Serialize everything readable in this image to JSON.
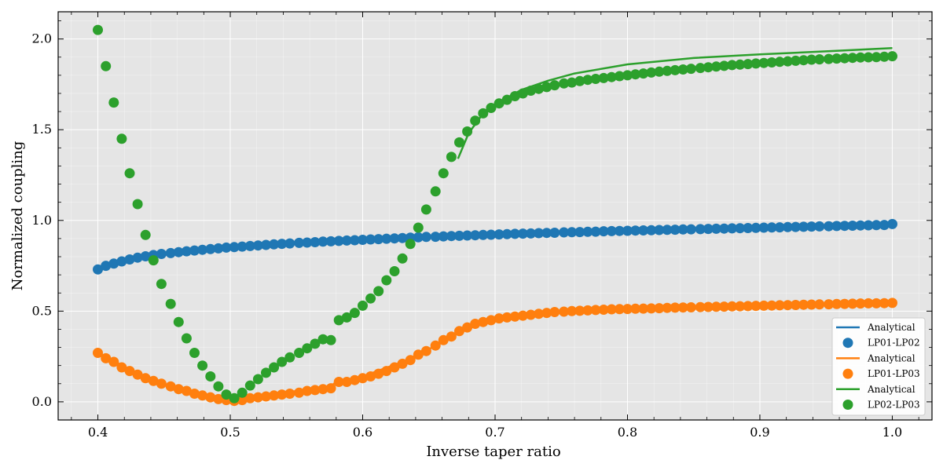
{
  "chart_data": {
    "type": "scatter",
    "xlabel": "Inverse taper ratio",
    "ylabel": "Normalized coupling",
    "xlim": [
      0.37,
      1.03
    ],
    "ylim": [
      -0.1,
      2.15
    ],
    "xticks": [
      "0.4",
      "0.5",
      "0.6",
      "0.7",
      "0.8",
      "0.9",
      "1.0"
    ],
    "xtick_values": [
      0.4,
      0.5,
      0.6,
      0.7,
      0.8,
      0.9,
      1.0
    ],
    "yticks": [
      "0.0",
      "0.5",
      "1.0",
      "1.5",
      "2.0"
    ],
    "ytick_values": [
      0.0,
      0.5,
      1.0,
      1.5,
      2.0
    ],
    "grid": true,
    "legend_position": "lower-right",
    "legend": [
      "Analytical",
      "LP01-LP02",
      "Analytical",
      "LP01-LP03",
      "Analytical",
      "LP02-LP03"
    ],
    "colors": {
      "blue": "#1f77b4",
      "orange": "#ff7f0e",
      "green": "#2ca02c",
      "background": "#e5e5e5"
    },
    "lines": [
      {
        "color": "blue",
        "x": [
          0.4,
          0.42,
          0.45,
          0.5,
          0.55,
          0.6,
          0.65,
          0.7,
          0.75,
          0.8,
          0.85,
          0.9,
          0.95,
          1.0
        ],
        "y": [
          0.73,
          0.78,
          0.81,
          0.85,
          0.875,
          0.895,
          0.91,
          0.925,
          0.935,
          0.945,
          0.955,
          0.962,
          0.97,
          0.98
        ]
      },
      {
        "color": "orange",
        "x": [
          0.4,
          0.44,
          0.47,
          0.5,
          0.51,
          0.55,
          0.575,
          0.58,
          0.6,
          0.63,
          0.65,
          0.67,
          0.68,
          0.7,
          0.75,
          0.8,
          0.85,
          0.9,
          0.95,
          1.0
        ],
        "y": [
          0.27,
          0.12,
          0.04,
          0.0,
          0.01,
          0.06,
          0.08,
          0.11,
          0.14,
          0.22,
          0.29,
          0.37,
          0.41,
          0.46,
          0.5,
          0.515,
          0.525,
          0.532,
          0.538,
          0.545
        ]
      },
      {
        "color": "green",
        "x": [
          0.672,
          0.68,
          0.69,
          0.7,
          0.72,
          0.74,
          0.76,
          0.8,
          0.85,
          0.9,
          0.95,
          1.0
        ],
        "y": [
          1.34,
          1.48,
          1.58,
          1.64,
          1.72,
          1.77,
          1.81,
          1.86,
          1.895,
          1.915,
          1.932,
          1.95
        ]
      }
    ],
    "scatter": [
      {
        "color": "blue",
        "x": [
          0.4,
          0.406,
          0.412,
          0.418,
          0.424,
          0.43,
          0.436,
          0.442,
          0.448,
          0.455,
          0.461,
          0.467,
          0.473,
          0.479,
          0.485,
          0.491,
          0.497,
          0.503,
          0.509,
          0.515,
          0.521,
          0.527,
          0.533,
          0.539,
          0.545,
          0.552,
          0.558,
          0.564,
          0.57,
          0.576,
          0.582,
          0.588,
          0.594,
          0.6,
          0.606,
          0.612,
          0.618,
          0.624,
          0.63,
          0.636,
          0.642,
          0.648,
          0.655,
          0.661,
          0.667,
          0.673,
          0.679,
          0.685,
          0.691,
          0.697,
          0.703,
          0.709,
          0.715,
          0.721,
          0.727,
          0.733,
          0.739,
          0.745,
          0.752,
          0.758,
          0.764,
          0.77,
          0.776,
          0.782,
          0.788,
          0.794,
          0.8,
          0.806,
          0.812,
          0.818,
          0.824,
          0.83,
          0.836,
          0.842,
          0.848,
          0.855,
          0.861,
          0.867,
          0.873,
          0.879,
          0.885,
          0.891,
          0.897,
          0.903,
          0.909,
          0.915,
          0.921,
          0.927,
          0.933,
          0.939,
          0.945,
          0.952,
          0.958,
          0.964,
          0.97,
          0.976,
          0.982,
          0.988,
          0.994,
          1.0
        ],
        "y": [
          0.73,
          0.75,
          0.762,
          0.774,
          0.785,
          0.795,
          0.802,
          0.809,
          0.815,
          0.82,
          0.825,
          0.83,
          0.834,
          0.838,
          0.842,
          0.846,
          0.85,
          0.853,
          0.856,
          0.859,
          0.862,
          0.865,
          0.868,
          0.871,
          0.873,
          0.876,
          0.878,
          0.88,
          0.883,
          0.885,
          0.887,
          0.889,
          0.891,
          0.893,
          0.895,
          0.897,
          0.899,
          0.901,
          0.903,
          0.905,
          0.907,
          0.909,
          0.91,
          0.912,
          0.914,
          0.915,
          0.917,
          0.918,
          0.92,
          0.921,
          0.923,
          0.924,
          0.926,
          0.927,
          0.928,
          0.93,
          0.931,
          0.932,
          0.934,
          0.935,
          0.936,
          0.937,
          0.938,
          0.94,
          0.941,
          0.942,
          0.943,
          0.944,
          0.945,
          0.946,
          0.947,
          0.948,
          0.949,
          0.95,
          0.951,
          0.952,
          0.953,
          0.954,
          0.955,
          0.956,
          0.957,
          0.958,
          0.959,
          0.96,
          0.961,
          0.962,
          0.963,
          0.964,
          0.965,
          0.966,
          0.967,
          0.968,
          0.969,
          0.97,
          0.971,
          0.972,
          0.973,
          0.974,
          0.975,
          0.98
        ]
      },
      {
        "color": "orange",
        "x": [
          0.4,
          0.406,
          0.412,
          0.418,
          0.424,
          0.43,
          0.436,
          0.442,
          0.448,
          0.455,
          0.461,
          0.467,
          0.473,
          0.479,
          0.485,
          0.491,
          0.497,
          0.503,
          0.509,
          0.515,
          0.521,
          0.527,
          0.533,
          0.539,
          0.545,
          0.552,
          0.558,
          0.564,
          0.57,
          0.576,
          0.582,
          0.588,
          0.594,
          0.6,
          0.606,
          0.612,
          0.618,
          0.624,
          0.63,
          0.636,
          0.642,
          0.648,
          0.655,
          0.661,
          0.667,
          0.673,
          0.679,
          0.685,
          0.691,
          0.697,
          0.703,
          0.709,
          0.715,
          0.721,
          0.727,
          0.733,
          0.739,
          0.745,
          0.752,
          0.758,
          0.764,
          0.77,
          0.776,
          0.782,
          0.788,
          0.794,
          0.8,
          0.806,
          0.812,
          0.818,
          0.824,
          0.83,
          0.836,
          0.842,
          0.848,
          0.855,
          0.861,
          0.867,
          0.873,
          0.879,
          0.885,
          0.891,
          0.897,
          0.903,
          0.909,
          0.915,
          0.921,
          0.927,
          0.933,
          0.939,
          0.945,
          0.952,
          0.958,
          0.964,
          0.97,
          0.976,
          0.982,
          0.988,
          0.994,
          1.0
        ],
        "y": [
          0.27,
          0.24,
          0.22,
          0.19,
          0.17,
          0.15,
          0.13,
          0.115,
          0.1,
          0.085,
          0.07,
          0.06,
          0.045,
          0.035,
          0.025,
          0.015,
          0.01,
          0.005,
          0.01,
          0.02,
          0.025,
          0.03,
          0.035,
          0.04,
          0.045,
          0.05,
          0.06,
          0.065,
          0.07,
          0.075,
          0.11,
          0.11,
          0.12,
          0.13,
          0.14,
          0.155,
          0.17,
          0.19,
          0.21,
          0.23,
          0.26,
          0.28,
          0.31,
          0.34,
          0.36,
          0.39,
          0.41,
          0.43,
          0.44,
          0.45,
          0.46,
          0.465,
          0.47,
          0.475,
          0.48,
          0.485,
          0.49,
          0.495,
          0.497,
          0.5,
          0.502,
          0.504,
          0.506,
          0.508,
          0.51,
          0.511,
          0.512,
          0.513,
          0.514,
          0.515,
          0.516,
          0.518,
          0.519,
          0.52,
          0.521,
          0.522,
          0.523,
          0.524,
          0.525,
          0.526,
          0.527,
          0.528,
          0.529,
          0.53,
          0.531,
          0.532,
          0.533,
          0.534,
          0.535,
          0.536,
          0.537,
          0.538,
          0.539,
          0.54,
          0.541,
          0.542,
          0.543,
          0.543,
          0.544,
          0.545
        ]
      },
      {
        "color": "green",
        "x": [
          0.4,
          0.406,
          0.412,
          0.418,
          0.424,
          0.43,
          0.436,
          0.442,
          0.448,
          0.455,
          0.461,
          0.467,
          0.473,
          0.479,
          0.485,
          0.491,
          0.497,
          0.503,
          0.509,
          0.515,
          0.521,
          0.527,
          0.533,
          0.539,
          0.545,
          0.552,
          0.558,
          0.564,
          0.57,
          0.576,
          0.582,
          0.588,
          0.594,
          0.6,
          0.606,
          0.612,
          0.618,
          0.624,
          0.63,
          0.636,
          0.642,
          0.648,
          0.655,
          0.661,
          0.667,
          0.673,
          0.679,
          0.685,
          0.691,
          0.697,
          0.703,
          0.709,
          0.715,
          0.721,
          0.727,
          0.733,
          0.739,
          0.745,
          0.752,
          0.758,
          0.764,
          0.77,
          0.776,
          0.782,
          0.788,
          0.794,
          0.8,
          0.806,
          0.812,
          0.818,
          0.824,
          0.83,
          0.836,
          0.842,
          0.848,
          0.855,
          0.861,
          0.867,
          0.873,
          0.879,
          0.885,
          0.891,
          0.897,
          0.903,
          0.909,
          0.915,
          0.921,
          0.927,
          0.933,
          0.939,
          0.945,
          0.952,
          0.958,
          0.964,
          0.97,
          0.976,
          0.982,
          0.988,
          0.994,
          1.0
        ],
        "y": [
          2.05,
          1.85,
          1.65,
          1.45,
          1.26,
          1.09,
          0.92,
          0.78,
          0.65,
          0.54,
          0.44,
          0.35,
          0.27,
          0.2,
          0.14,
          0.085,
          0.04,
          0.02,
          0.05,
          0.09,
          0.125,
          0.16,
          0.19,
          0.22,
          0.245,
          0.27,
          0.295,
          0.32,
          0.345,
          0.34,
          0.45,
          0.465,
          0.49,
          0.53,
          0.57,
          0.61,
          0.67,
          0.72,
          0.79,
          0.87,
          0.96,
          1.06,
          1.16,
          1.26,
          1.35,
          1.43,
          1.49,
          1.55,
          1.59,
          1.62,
          1.645,
          1.665,
          1.685,
          1.7,
          1.715,
          1.725,
          1.735,
          1.745,
          1.755,
          1.76,
          1.768,
          1.775,
          1.78,
          1.785,
          1.79,
          1.795,
          1.8,
          1.805,
          1.81,
          1.815,
          1.82,
          1.824,
          1.828,
          1.832,
          1.836,
          1.84,
          1.844,
          1.848,
          1.852,
          1.856,
          1.859,
          1.862,
          1.865,
          1.868,
          1.871,
          1.874,
          1.877,
          1.88,
          1.883,
          1.886,
          1.888,
          1.89,
          1.892,
          1.894,
          1.896,
          1.898,
          1.899,
          1.9,
          1.902,
          1.905
        ]
      }
    ]
  }
}
